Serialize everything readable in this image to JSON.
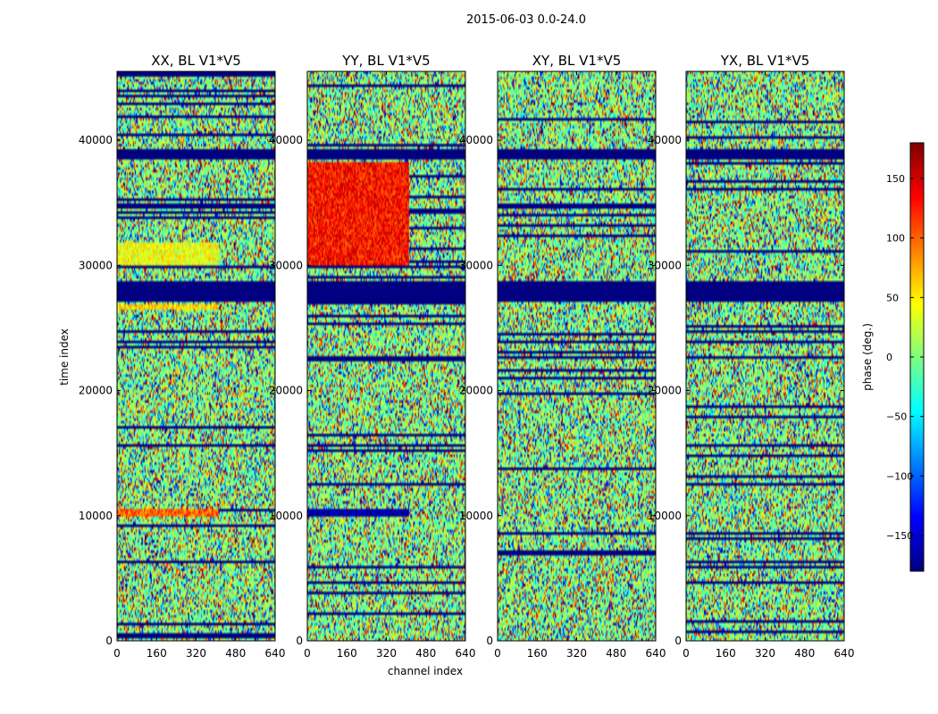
{
  "suptitle": "2015-06-03 0.0-24.0",
  "xlabel": "channel index",
  "ylabel": "time index",
  "colorbar": {
    "label": "phase (deg.)",
    "ticks": [
      150,
      100,
      50,
      0,
      -50,
      -100,
      -150
    ],
    "range": [
      -180,
      180
    ],
    "colormap": "jet"
  },
  "chart_data": [
    {
      "type": "heatmap",
      "title": "XX, BL V1*V5",
      "xlabel": "channel index",
      "ylabel": "time index",
      "xlim": [
        0,
        640
      ],
      "ylim": [
        0,
        45500
      ],
      "xticks": [
        0,
        160,
        320,
        480,
        640
      ],
      "yticks": [
        0,
        10000,
        20000,
        30000,
        40000
      ],
      "features": [
        {
          "kind": "flagged-band",
          "from": 27000,
          "to": 28800,
          "value": -180
        },
        {
          "kind": "flagged-band",
          "from": 38500,
          "to": 39300,
          "value": -180
        },
        {
          "kind": "coherent-band",
          "from": 26400,
          "to": 26800,
          "channels": [
            0,
            410
          ],
          "value": 60
        },
        {
          "kind": "coherent-band",
          "from": 10000,
          "to": 10500,
          "channels": [
            0,
            410
          ],
          "value": 100
        },
        {
          "kind": "coherent-band",
          "from": 30000,
          "to": 31800,
          "channels": [
            0,
            410
          ],
          "value": 40
        }
      ]
    },
    {
      "type": "heatmap",
      "title": "YY, BL V1*V5",
      "xlabel": "channel index",
      "ylabel": "time index",
      "xlim": [
        0,
        640
      ],
      "ylim": [
        0,
        45500
      ],
      "xticks": [
        0,
        160,
        320,
        480,
        640
      ],
      "yticks": [
        0,
        10000,
        20000,
        30000,
        40000
      ],
      "features": [
        {
          "kind": "flagged-band",
          "from": 27000,
          "to": 28800,
          "value": -180
        },
        {
          "kind": "flagged-band",
          "from": 38500,
          "to": 39300,
          "value": -180
        },
        {
          "kind": "coherent-band",
          "from": 10000,
          "to": 10500,
          "channels": [
            0,
            410
          ],
          "value": -170
        },
        {
          "kind": "coherent-band",
          "from": 30000,
          "to": 38300,
          "channels": [
            0,
            410
          ],
          "value": 130
        }
      ]
    },
    {
      "type": "heatmap",
      "title": "XY, BL V1*V5",
      "xlabel": "channel index",
      "ylabel": "time index",
      "xlim": [
        0,
        640
      ],
      "ylim": [
        0,
        45500
      ],
      "xticks": [
        0,
        160,
        320,
        480,
        640
      ],
      "yticks": [
        0,
        10000,
        20000,
        30000,
        40000
      ],
      "features": [
        {
          "kind": "flagged-band",
          "from": 27000,
          "to": 28800,
          "value": -180
        },
        {
          "kind": "flagged-band",
          "from": 38500,
          "to": 39300,
          "value": -180
        }
      ]
    },
    {
      "type": "heatmap",
      "title": "YX, BL V1*V5",
      "xlabel": "channel index",
      "ylabel": "time index",
      "xlim": [
        0,
        640
      ],
      "ylim": [
        0,
        45500
      ],
      "xticks": [
        0,
        160,
        320,
        480,
        640
      ],
      "yticks": [
        0,
        10000,
        20000,
        30000,
        40000
      ],
      "features": [
        {
          "kind": "flagged-band",
          "from": 27000,
          "to": 28800,
          "value": -180
        },
        {
          "kind": "flagged-band",
          "from": 38500,
          "to": 39300,
          "value": -180
        }
      ]
    }
  ]
}
